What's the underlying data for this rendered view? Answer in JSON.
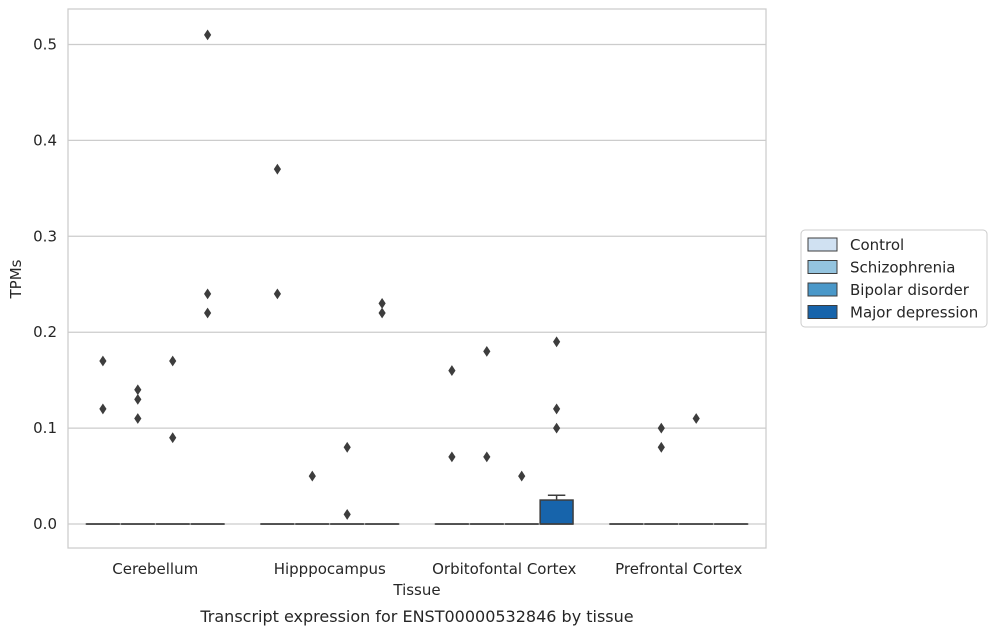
{
  "chart_data": {
    "type": "box",
    "caption": "Transcript expression for ENST00000532846 by tissue",
    "xlabel": "Tissue",
    "ylabel": "TPMs",
    "ylim": [
      -0.025,
      0.537
    ],
    "yticks": [
      "0.0",
      "0.1",
      "0.2",
      "0.3",
      "0.4",
      "0.5"
    ],
    "ytick_values": [
      0.0,
      0.1,
      0.2,
      0.3,
      0.4,
      0.5
    ],
    "grid": true,
    "legend_position": "right",
    "categories": [
      "Cerebellum",
      "Hipppocampus",
      "Orbitofontal Cortex",
      "Prefrontal Cortex"
    ],
    "series": [
      {
        "name": "Control",
        "color": "#d0e1f2",
        "boxes": [
          {
            "q1": 0,
            "median": 0,
            "q3": 0,
            "whisker_low": 0,
            "whisker_high": 0,
            "outliers": [
              0.12,
              0.17
            ]
          },
          {
            "q1": 0,
            "median": 0,
            "q3": 0,
            "whisker_low": 0,
            "whisker_high": 0,
            "outliers": [
              0.37,
              0.24
            ]
          },
          {
            "q1": 0,
            "median": 0,
            "q3": 0,
            "whisker_low": 0,
            "whisker_high": 0,
            "outliers": [
              0.16,
              0.07
            ]
          },
          {
            "q1": 0,
            "median": 0,
            "q3": 0,
            "whisker_low": 0,
            "whisker_high": 0,
            "outliers": []
          }
        ]
      },
      {
        "name": "Schizophrenia",
        "color": "#94c4df",
        "boxes": [
          {
            "q1": 0,
            "median": 0,
            "q3": 0,
            "whisker_low": 0,
            "whisker_high": 0,
            "outliers": [
              0.14,
              0.13,
              0.11
            ]
          },
          {
            "q1": 0,
            "median": 0,
            "q3": 0,
            "whisker_low": 0,
            "whisker_high": 0,
            "outliers": [
              0.05
            ]
          },
          {
            "q1": 0,
            "median": 0,
            "q3": 0,
            "whisker_low": 0,
            "whisker_high": 0,
            "outliers": [
              0.18,
              0.07
            ]
          },
          {
            "q1": 0,
            "median": 0,
            "q3": 0,
            "whisker_low": 0,
            "whisker_high": 0,
            "outliers": [
              0.1,
              0.08
            ]
          }
        ]
      },
      {
        "name": "Bipolar disorder",
        "color": "#4a98c9",
        "boxes": [
          {
            "q1": 0,
            "median": 0,
            "q3": 0,
            "whisker_low": 0,
            "whisker_high": 0,
            "outliers": [
              0.17,
              0.09
            ]
          },
          {
            "q1": 0,
            "median": 0,
            "q3": 0,
            "whisker_low": 0,
            "whisker_high": 0,
            "outliers": [
              0.01,
              0.08
            ]
          },
          {
            "q1": 0,
            "median": 0,
            "q3": 0,
            "whisker_low": 0,
            "whisker_high": 0,
            "outliers": [
              0.05
            ]
          },
          {
            "q1": 0,
            "median": 0,
            "q3": 0,
            "whisker_low": 0,
            "whisker_high": 0,
            "outliers": [
              0.11
            ]
          }
        ]
      },
      {
        "name": "Major depression",
        "color": "#1764ab",
        "boxes": [
          {
            "q1": 0,
            "median": 0,
            "q3": 0,
            "whisker_low": 0,
            "whisker_high": 0,
            "outliers": [
              0.51,
              0.24,
              0.22
            ]
          },
          {
            "q1": 0,
            "median": 0,
            "q3": 0,
            "whisker_low": 0,
            "whisker_high": 0,
            "outliers": [
              0.23,
              0.22
            ]
          },
          {
            "q1": 0,
            "median": 0,
            "q3": 0.025,
            "whisker_low": 0,
            "whisker_high": 0.03,
            "outliers": [
              0.19,
              0.12,
              0.1
            ]
          },
          {
            "q1": 0,
            "median": 0,
            "q3": 0,
            "whisker_low": 0,
            "whisker_high": 0,
            "outliers": []
          }
        ]
      }
    ]
  }
}
